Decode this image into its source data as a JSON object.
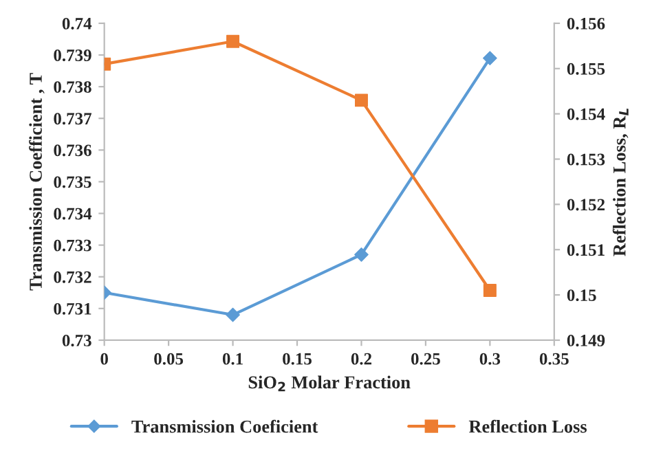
{
  "chart_data": {
    "type": "line",
    "xlabel": "SiO$_{2}$ Molar Fraction",
    "ylabel": "Transmission Coefficient , T",
    "y2label": "Reflection Loss, R$_{L}$",
    "x": [
      0,
      0.1,
      0.2,
      0.3
    ],
    "series": [
      {
        "name": "Transmission Coeficient",
        "color": "#5b9bd5",
        "marker": "diamond",
        "values": [
          0.7315,
          0.7308,
          0.7327,
          0.7389
        ]
      },
      {
        "name": "Reflection Loss",
        "color": "#ed7d31",
        "marker": "square",
        "axis": "y2",
        "values": [
          0.1551,
          0.1556,
          0.1543,
          0.1501
        ]
      }
    ],
    "xlim": [
      0,
      0.35
    ],
    "xticks": [
      {
        "value": 0,
        "label": "0"
      },
      0.05,
      0.1,
      0.15,
      0.2,
      0.25,
      0.3,
      0.35
    ],
    "ylim": [
      0.73,
      0.74
    ],
    "yticks": [
      {
        "value": 0.73,
        "label": "0.73"
      },
      0.731,
      0.732,
      0.733,
      0.734,
      0.735,
      0.736,
      0.737,
      0.738,
      0.739,
      {
        "value": 0.74,
        "label": "0.74"
      }
    ],
    "y2lim": [
      0.149,
      0.156
    ],
    "y2ticks": [
      0.149,
      {
        "value": 0.15,
        "label": "0.15"
      },
      0.151,
      0.152,
      0.153,
      0.154,
      0.155,
      0.156
    ],
    "grid": false,
    "legend": "bottom",
    "line_style": "solid"
  }
}
